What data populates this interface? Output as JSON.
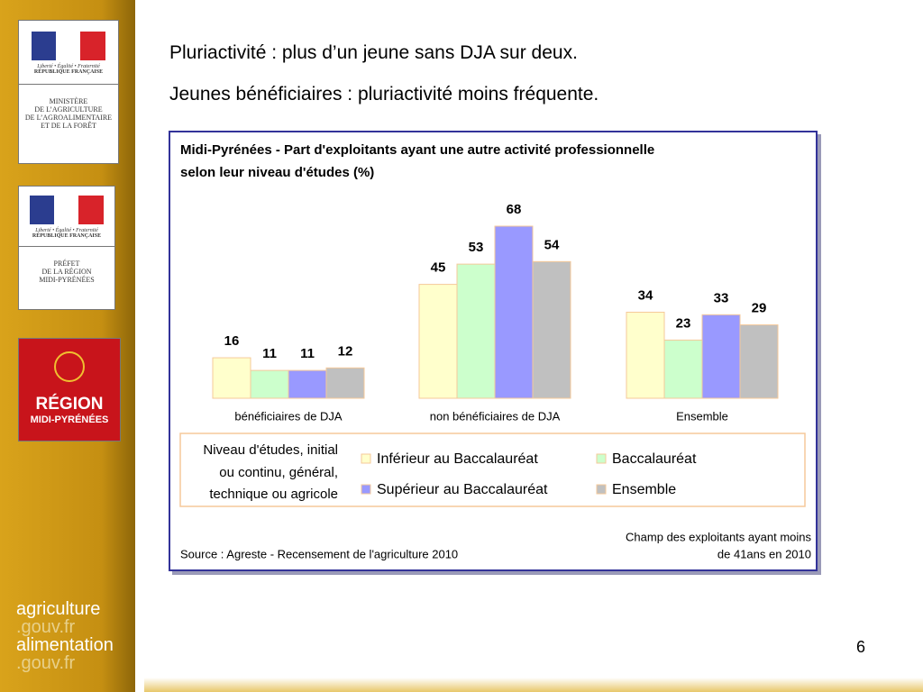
{
  "slide": {
    "title_lines": [
      "Pluriactivité : plus d’un jeune sans DJA sur deux.",
      "Jeunes bénéficiaires : pluriactivité moins fréquente."
    ],
    "page_number": "6",
    "republique_motto": "Liberté • Égalité • Fraternité",
    "republique_name": "RÉPUBLIQUE FRANÇAISE",
    "ministere_lines": [
      "MINISTÈRE",
      "DE L’AGRICULTURE",
      "DE L’AGROALIMENTAIRE",
      "ET DE LA FORÊT"
    ],
    "prefet_lines": [
      "PRÉFET",
      "DE LA RÉGION",
      "MIDI-PYRÉNÉES"
    ],
    "region_lines": [
      "RÉGION",
      "MIDI-PYRÉNÉES"
    ],
    "footer_lines": [
      "agriculture",
      ".gouv.fr",
      "alimentation",
      ".gouv.fr"
    ]
  },
  "chart_data": {
    "type": "bar",
    "title_lines": [
      "Midi-Pyrénées - Part d'exploitants ayant une autre activité professionnelle",
      "selon leur niveau d'études (%)"
    ],
    "categories": [
      "bénéficiaires de DJA",
      "non bénéficiaires de DJA",
      "Ensemble"
    ],
    "series": [
      {
        "name": "Inférieur au Baccalauréat",
        "color": "#ffffcc",
        "values": [
          16,
          45,
          34
        ]
      },
      {
        "name": "Baccalauréat",
        "color": "#ccffcc",
        "values": [
          11,
          53,
          23
        ]
      },
      {
        "name": "Supérieur au Baccalauréat",
        "color": "#9999ff",
        "values": [
          11,
          68,
          33
        ]
      },
      {
        "name": "Ensemble",
        "color": "#c0c0c0",
        "values": [
          12,
          54,
          29
        ]
      }
    ],
    "legend_title_lines": [
      "Niveau d'études, initial",
      "ou continu, général,",
      "technique ou agricole"
    ],
    "note_lines": [
      "Champ des exploitants ayant moins",
      "de 41ans en 2010"
    ],
    "source": "Source : Agreste - Recensement de l'agriculture 2010"
  }
}
